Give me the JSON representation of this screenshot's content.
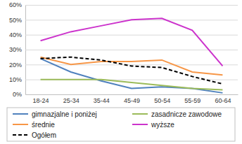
{
  "chart_data": {
    "type": "line",
    "categories": [
      "18-24",
      "25-34",
      "35-44",
      "45-49",
      "50-54",
      "55-59",
      "60-64"
    ],
    "series": [
      {
        "name": "gimnazjalne i poniżej",
        "color": "#4f81bd",
        "line_style": "solid",
        "values": [
          24,
          15,
          9,
          4,
          5,
          4,
          1
        ]
      },
      {
        "name": "zasadnicze zawodowe",
        "color": "#9bbb59",
        "line_style": "solid",
        "values": [
          10,
          10,
          10,
          8,
          6,
          4,
          3
        ]
      },
      {
        "name": "średnie",
        "color": "#f79646",
        "line_style": "solid",
        "values": [
          25,
          20,
          22,
          22,
          23,
          15,
          13
        ]
      },
      {
        "name": "wyższe",
        "color": "#cc33cc",
        "line_style": "solid",
        "values": [
          36,
          42,
          46,
          50,
          51,
          43,
          19
        ]
      },
      {
        "name": "Ogółem",
        "color": "#000000",
        "line_style": "dashed",
        "values": [
          24,
          25,
          23,
          19,
          18,
          12,
          7
        ]
      }
    ],
    "ylim": [
      0,
      60
    ],
    "yticks": [
      {
        "value": 0,
        "label": "0%"
      },
      {
        "value": 10,
        "label": "10%"
      },
      {
        "value": 20,
        "label": "20%"
      },
      {
        "value": 30,
        "label": "30%"
      },
      {
        "value": 40,
        "label": "40%"
      },
      {
        "value": 50,
        "label": "50%"
      },
      {
        "value": 60,
        "label": "60%"
      }
    ],
    "grid": true,
    "legend": "bottom"
  }
}
